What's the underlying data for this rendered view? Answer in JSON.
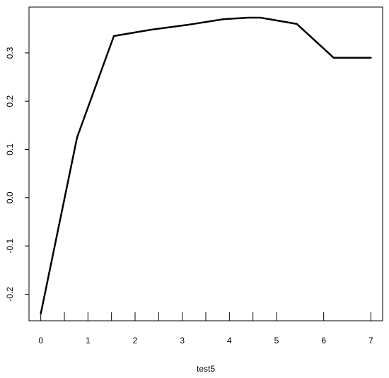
{
  "chart_data": {
    "type": "line",
    "title": "",
    "xlabel": "test5",
    "ylabel": "",
    "xlim": [
      -0.25,
      7.25
    ],
    "ylim": [
      -0.255,
      0.395
    ],
    "x_ticks": [
      0,
      1,
      2,
      3,
      4,
      5,
      6,
      7
    ],
    "x_tick_labels": [
      "0",
      "1",
      "2",
      "3",
      "4",
      "5",
      "6",
      "7"
    ],
    "x_minor_ticks": [
      0.5,
      1.5,
      2.5,
      3.5,
      4.5
    ],
    "y_ticks": [
      -0.2,
      -0.1,
      0.0,
      0.1,
      0.2,
      0.3
    ],
    "y_tick_labels": [
      "-0.2",
      "-0.1",
      "0.0",
      "0.1",
      "0.2",
      "0.3"
    ],
    "grid": false,
    "series": [
      {
        "color": "#000000",
        "x": [
          0,
          0.77,
          1.55,
          2.33,
          3.1,
          3.88,
          4.4,
          4.66,
          5.43,
          6.21,
          7
        ],
        "y": [
          -0.24,
          0.125,
          0.335,
          0.348,
          0.358,
          0.37,
          0.373,
          0.373,
          0.36,
          0.29,
          0.29
        ]
      }
    ]
  }
}
